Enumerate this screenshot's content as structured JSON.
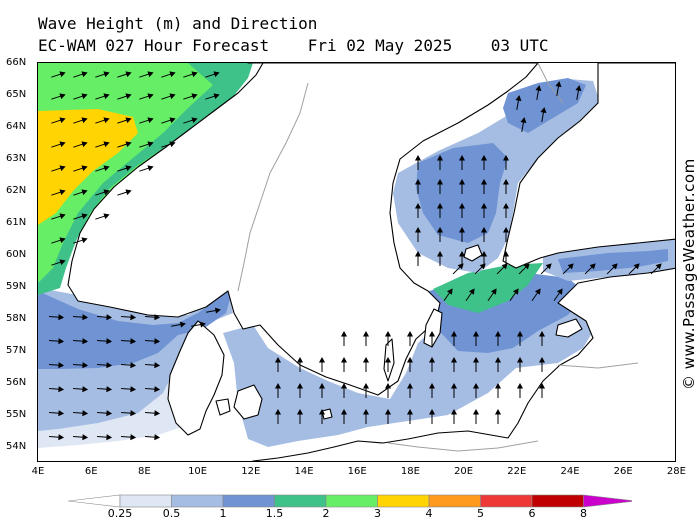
{
  "header": {
    "title": "Wave Height (m) and Direction",
    "model": "EC-WAM 027 Hour Forecast",
    "date": "Fri 02 May 2025",
    "time": "03 UTC"
  },
  "watermark": "© www.PassageWeather.com",
  "axes": {
    "lat_labels": [
      "66N",
      "65N",
      "64N",
      "63N",
      "62N",
      "61N",
      "60N",
      "59N",
      "58N",
      "57N",
      "56N",
      "55N",
      "54N"
    ],
    "lon_labels": [
      "4E",
      "6E",
      "8E",
      "10E",
      "12E",
      "14E",
      "16E",
      "18E",
      "20E",
      "22E",
      "24E",
      "26E",
      "28E"
    ]
  },
  "legend": {
    "labels": [
      "0.25",
      "0.5",
      "1",
      "1.5",
      "2",
      "3",
      "4",
      "5",
      "6",
      "8"
    ],
    "colors": [
      "#ffffff",
      "#dfe6f4",
      "#a6bde3",
      "#6f93d3",
      "#3ec28a",
      "#66ee66",
      "#ffd400",
      "#ff9a1f",
      "#ee3838",
      "#c00000",
      "#cc00cc"
    ]
  },
  "colors": {
    "land": "#ffffff",
    "coast": "#000000",
    "border": "#a0a0a0",
    "arrow": "#000000"
  }
}
